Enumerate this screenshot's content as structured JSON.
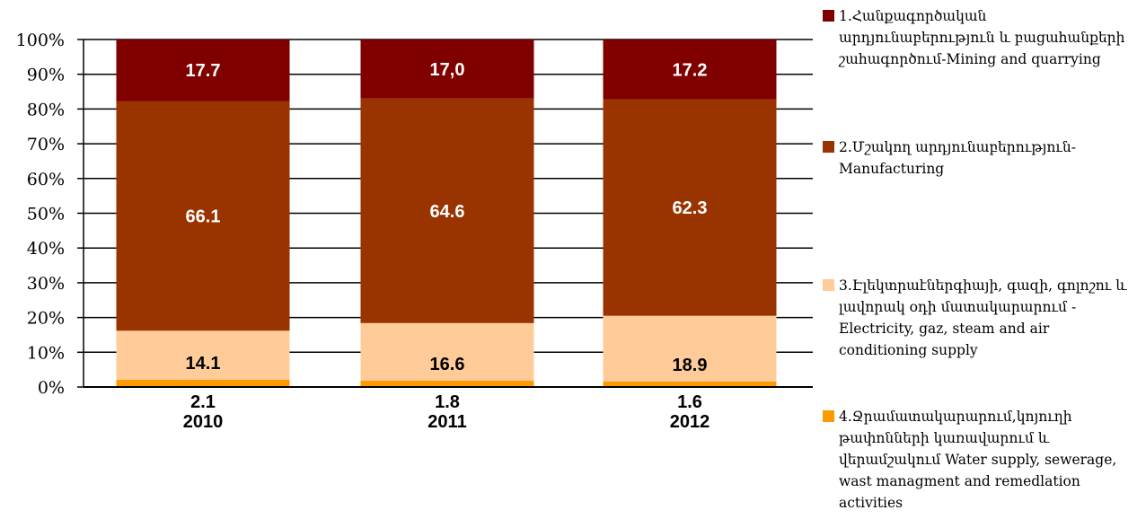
{
  "chart_data": {
    "type": "bar",
    "stacked": true,
    "normalized_percent": true,
    "categories": [
      "2010",
      "2011",
      "2012"
    ],
    "series": [
      {
        "name": "4.Ջրամատակարարում,կոյուղի թափոնների կառավարում և վերամշակում Water supply, sewerage, wast managment and remedlation activities",
        "values": [
          2.1,
          1.8,
          1.6
        ],
        "labels": [
          "2.1",
          "1.8",
          "1.6"
        ],
        "color": "#FF9900",
        "label_color": "#000000",
        "label_position": "below"
      },
      {
        "name": "3.Էլեկտրաէներգիայի, գազի, գոլոշու և լավորակ օդի մատակարարում -Electricity, gaz, steam and air conditioning supply",
        "values": [
          14.1,
          16.6,
          18.9
        ],
        "labels": [
          "14.1",
          "16.6",
          "18.9"
        ],
        "color": "#FFCC99",
        "label_color": "#000000",
        "label_position": "inside"
      },
      {
        "name": "2.Մշակող արդյունաբերություն-Manufacturing",
        "values": [
          66.1,
          64.6,
          62.3
        ],
        "labels": [
          "66.1",
          "64.6",
          "62.3"
        ],
        "color": "#993300",
        "label_color": "#FFFFFF",
        "label_position": "inside"
      },
      {
        "name": "1.Հանքագործական արդյունաբերություն և բացահանքերի շահագործում-Mining and quarrying",
        "values": [
          17.7,
          17.0,
          17.2
        ],
        "labels": [
          "17.7",
          "17,0",
          "17.2"
        ],
        "color": "#800000",
        "label_color": "#FFFFFF",
        "label_position": "inside"
      }
    ],
    "ylim": [
      0,
      100
    ],
    "yticks": [
      "0%",
      "10%",
      "20%",
      "30%",
      "40%",
      "50%",
      "60%",
      "70%",
      "80%",
      "90%",
      "100%"
    ],
    "grid": true,
    "legend_position": "right",
    "title": "",
    "xlabel": "",
    "ylabel": ""
  }
}
